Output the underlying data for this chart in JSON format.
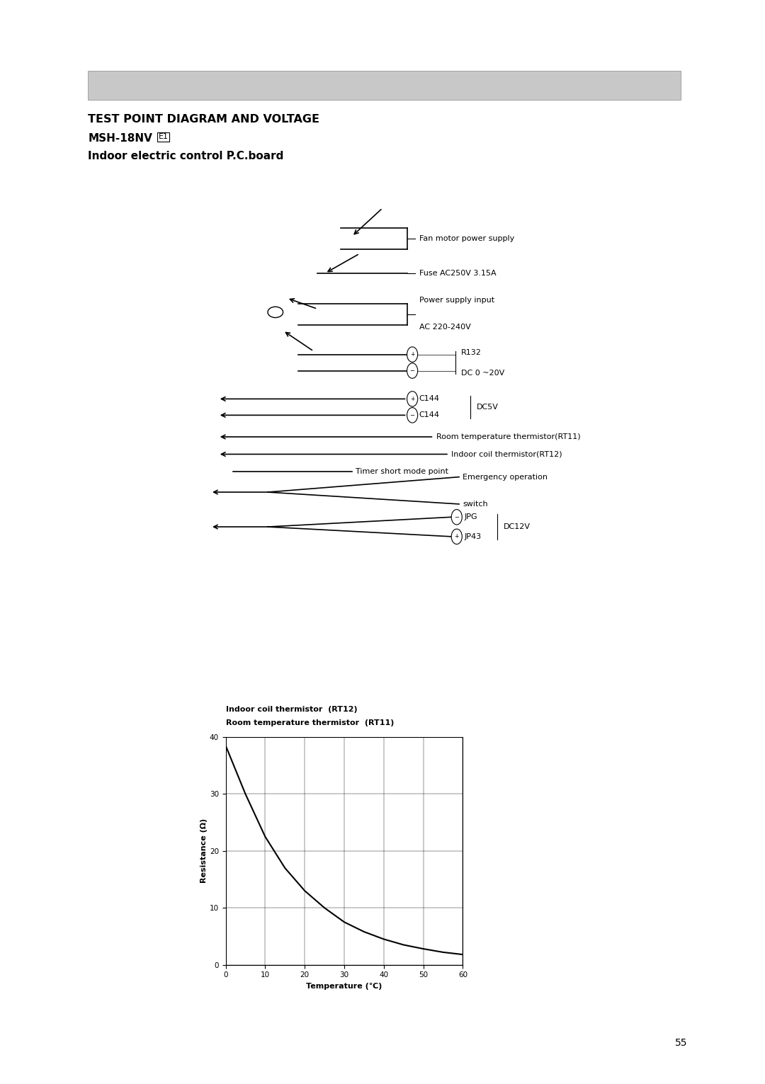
{
  "page_width": 10.8,
  "page_height": 15.31,
  "bg_color": "#ffffff",
  "title_line1": "TEST POINT DIAGRAM AND VOLTAGE",
  "title_line2": "MSH-18NV",
  "title_line2_box": "E1",
  "title_line3": "Indoor electric control P.C.board",
  "header_bar_color": "#c8c8c8",
  "page_number": "55",
  "thermistor_curve_x": [
    0,
    5,
    10,
    15,
    20,
    25,
    30,
    35,
    40,
    45,
    50,
    55,
    60
  ],
  "thermistor_curve_y": [
    38.5,
    30.0,
    22.5,
    17.0,
    13.0,
    10.0,
    7.5,
    5.8,
    4.5,
    3.5,
    2.8,
    2.2,
    1.8
  ],
  "graph_title_line1": "Indoor coil thermistor  (RT12)",
  "graph_title_line2": "Room temperature thermistor  (RT11)",
  "graph_xlabel": "Temperature (℃)",
  "graph_ylabel": "Resistance (Ω)",
  "graph_xlim": [
    0,
    60
  ],
  "graph_ylim": [
    0,
    40
  ],
  "graph_xticks": [
    0,
    10,
    20,
    30,
    40,
    50,
    60
  ],
  "graph_yticks": [
    0,
    10,
    20,
    30,
    40
  ]
}
